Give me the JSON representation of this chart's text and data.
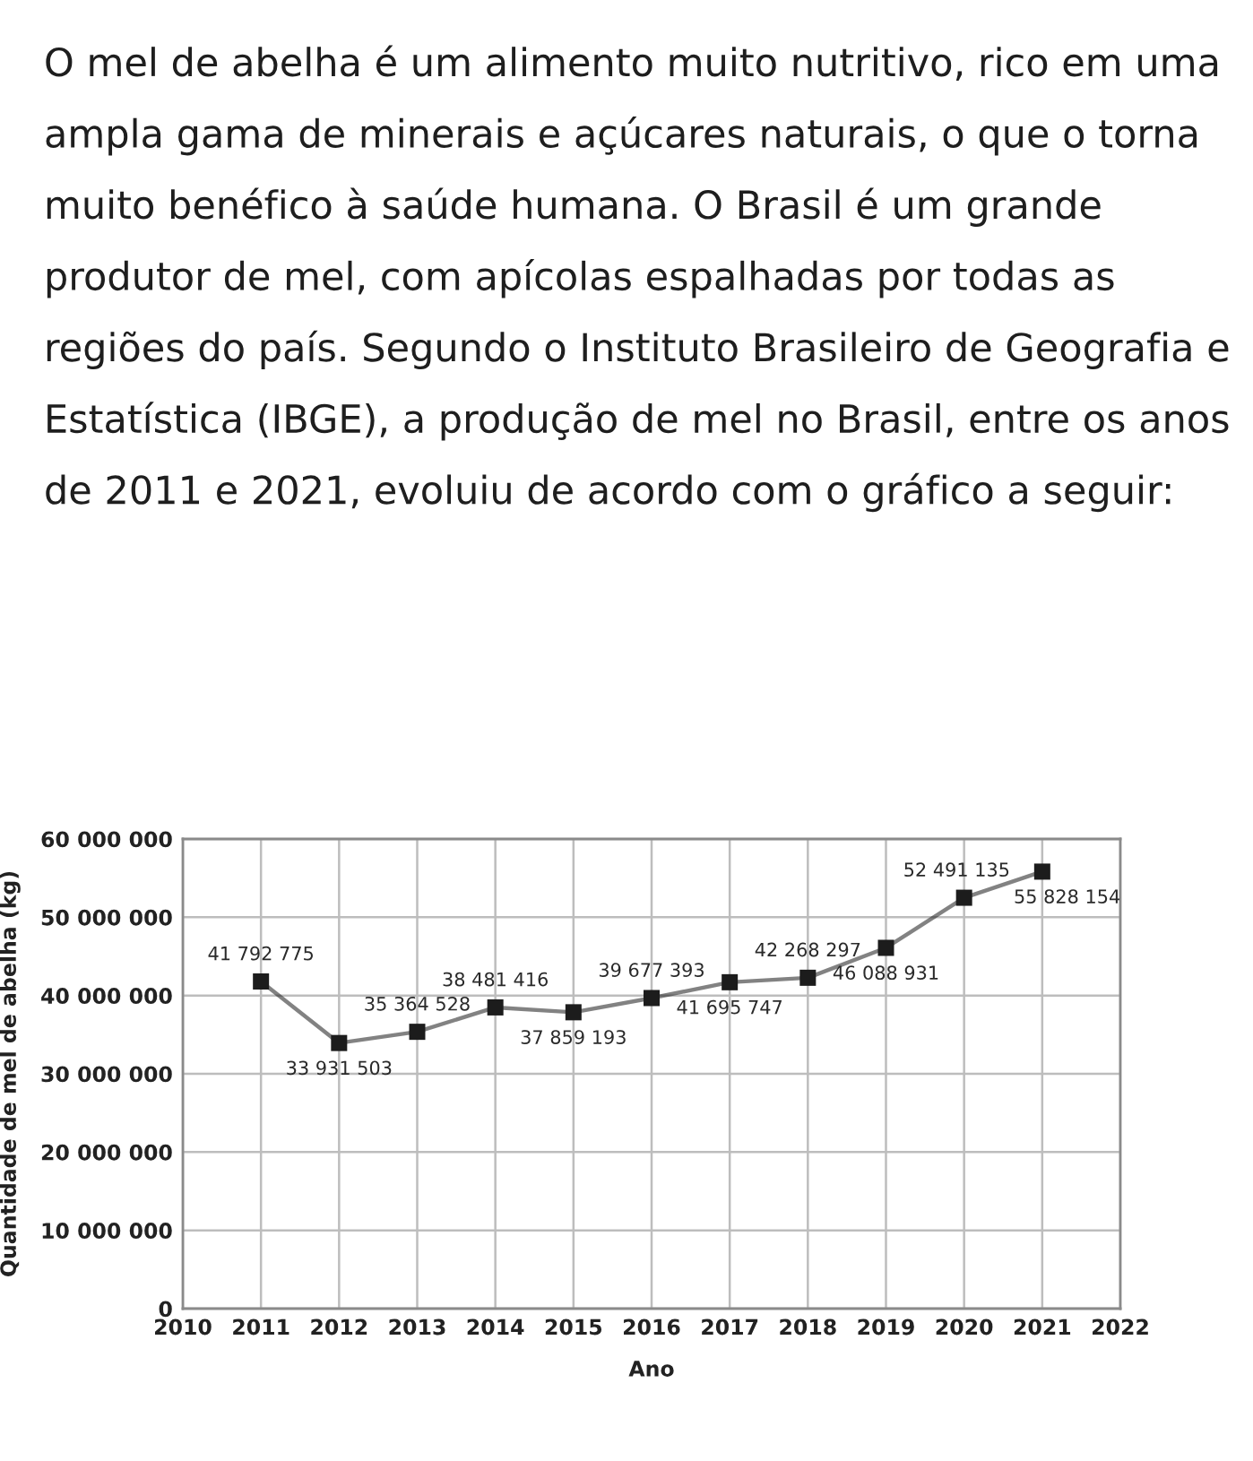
{
  "chart_data": {
    "type": "line",
    "title": "O mel de abelha é um alimento muito nutritivo, rico em uma ampla gama de minerais e açúcares naturais, o que o torna muito benéfico à saúde humana. O Brasil é um grande produtor de mel, com apícolas espalhadas por todas as regiões do país. Segundo o Instituto Brasileiro de Geografia e Estatística (IBGE), a produção de mel no Brasil, entre os anos de 2011 e 2021, evoluiu de acordo com o gráfico a seguir:",
    "xlabel": "Ano",
    "ylabel": "Quantidade de mel de abelha (kg)",
    "x": [
      2011,
      2012,
      2013,
      2014,
      2015,
      2016,
      2017,
      2018,
      2019,
      2020,
      2021
    ],
    "series": [
      {
        "color": "#1c1c1c",
        "values": [
          41792775,
          33931503,
          35364528,
          38481416,
          37859193,
          39677393,
          41695747,
          42268297,
          46088931,
          52491135,
          55828154
        ],
        "value_labels": [
          "41 792 775",
          "33 931 503",
          "35 364 528",
          "38 481 416",
          "37 859 193",
          "39 677 393",
          "41 695 747",
          "42 268 297",
          "46 088 931",
          "52 491 135",
          "55 828 154"
        ]
      }
    ],
    "xlim": [
      2010,
      2022
    ],
    "xticks": [
      2010,
      2011,
      2012,
      2013,
      2014,
      2015,
      2016,
      2017,
      2018,
      2019,
      2020,
      2021,
      2022
    ],
    "ylim": [
      0,
      60000000
    ],
    "yticks": [
      0,
      {
        "value": 10000000,
        "label": "10 000 000"
      },
      {
        "value": 20000000,
        "label": "20 000 000"
      },
      {
        "value": 30000000,
        "label": "30 000 000"
      },
      {
        "value": 40000000,
        "label": "40 000 000"
      },
      {
        "value": 50000000,
        "label": "50 000 000"
      },
      {
        "value": 60000000,
        "label": "60 000 000"
      }
    ],
    "grid": true,
    "marker": "square",
    "line_style": "solid"
  }
}
